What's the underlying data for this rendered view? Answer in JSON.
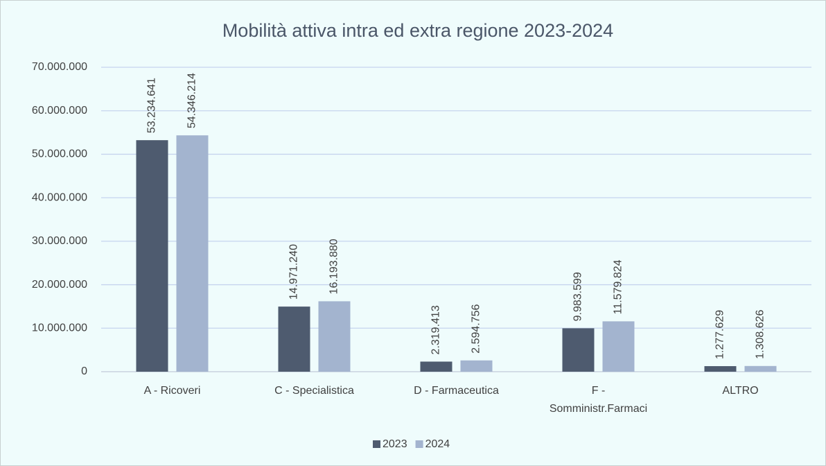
{
  "chart_data": {
    "type": "bar",
    "title": "Mobilità attiva intra ed extra regione 2023-2024",
    "categories": [
      "A - Ricoveri",
      "C - Specialistica",
      "D - Farmaceutica",
      "F - Somministr.Farmaci",
      "ALTRO"
    ],
    "series": [
      {
        "name": "2023",
        "color": "#4e5b6f",
        "values": [
          53234641,
          14971240,
          2319413,
          9983599,
          1277629
        ],
        "value_labels": [
          "53.234.641",
          "14.971.240",
          "2.319.413",
          "9.983.599",
          "1.277.629"
        ]
      },
      {
        "name": "2024",
        "color": "#a3b4cf",
        "values": [
          54346214,
          16193880,
          2594756,
          11579824,
          1308626
        ],
        "value_labels": [
          "54.346.214",
          "16.193.880",
          "2.594.756",
          "11.579.824",
          "1.308.626"
        ]
      }
    ],
    "ylim": [
      0,
      70000000
    ],
    "yticks": [
      0,
      {
        "value": 10000000,
        "label": "10.000.000"
      },
      {
        "value": 20000000,
        "label": "20.000.000"
      },
      {
        "value": 30000000,
        "label": "30.000.000"
      },
      {
        "value": 40000000,
        "label": "40.000.000"
      },
      {
        "value": 50000000,
        "label": "50.000.000"
      },
      {
        "value": 60000000,
        "label": "60.000.000"
      },
      {
        "value": 70000000,
        "label": "70.000.000"
      }
    ],
    "grid": true,
    "legend": "bottom"
  }
}
